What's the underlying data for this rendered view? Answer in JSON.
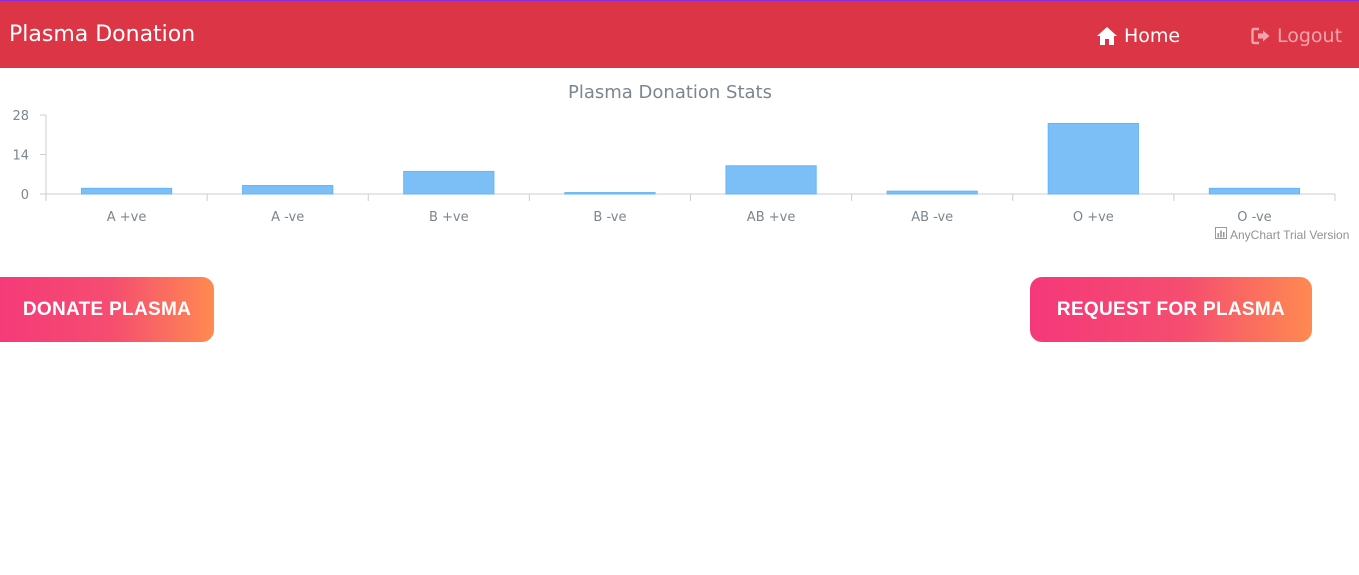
{
  "navbar": {
    "brand": "Plasma Donation",
    "home_label": "Home",
    "logout_label": "Logout",
    "background_color": "#dc3545"
  },
  "chart_data": {
    "type": "bar",
    "title": "Plasma Donation Stats",
    "categories": [
      "A +ve",
      "A -ve",
      "B +ve",
      "B -ve",
      "AB +ve",
      "AB -ve",
      "O +ve",
      "O -ve"
    ],
    "values": [
      2,
      3,
      8,
      0.5,
      10,
      1,
      25,
      2
    ],
    "yticks": [
      0,
      14,
      28
    ],
    "ylim": [
      0,
      28
    ],
    "xlabel": "",
    "ylabel": "",
    "bar_color": "#7cbff7",
    "grid": false,
    "legend": "none"
  },
  "credits": {
    "text": "AnyChart Trial Version"
  },
  "actions": {
    "donate_label": "DONATE PLASMA",
    "request_label": "REQUEST FOR PLASMA"
  }
}
